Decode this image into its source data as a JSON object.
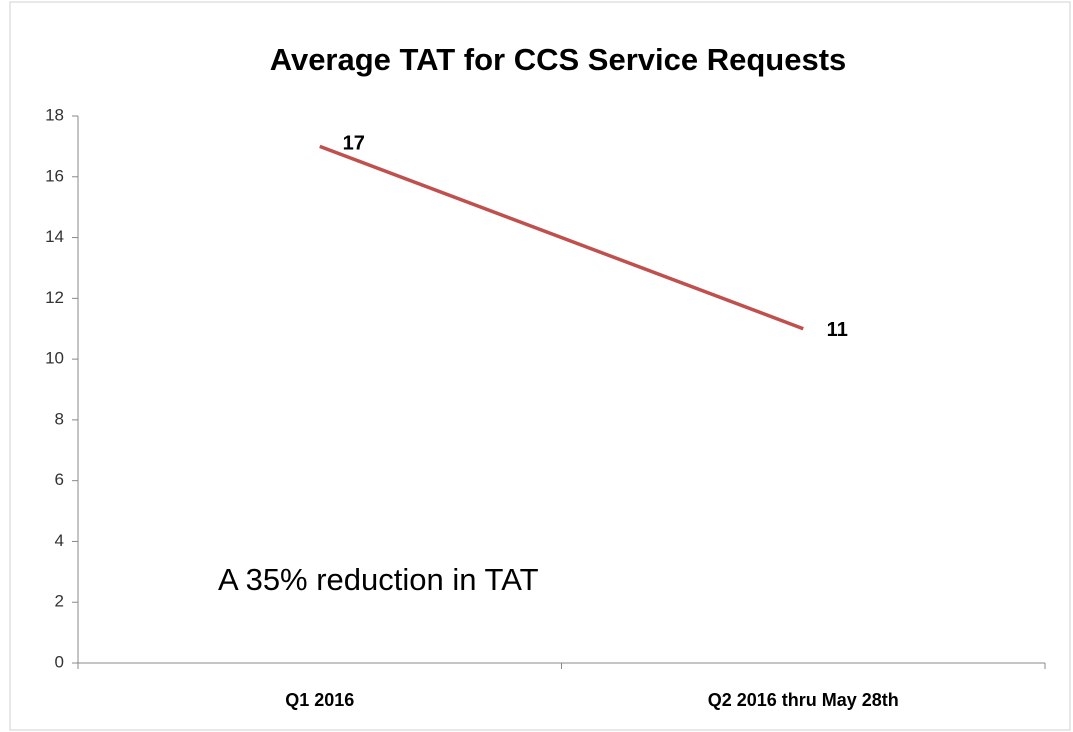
{
  "chart_data": {
    "type": "line",
    "title": "Average TAT for CCS Service Requests",
    "categories": [
      "Q1 2016",
      "Q2 2016 thru May 28th"
    ],
    "values": [
      17,
      11
    ],
    "color": "#c0504d",
    "ylim": [
      0,
      18
    ],
    "yticks": [
      0,
      2,
      4,
      6,
      8,
      10,
      12,
      14,
      16,
      18
    ],
    "annotation": "A 35% reduction in TAT"
  }
}
